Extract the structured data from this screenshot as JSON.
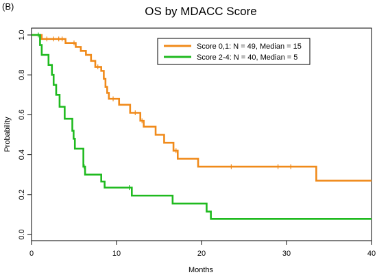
{
  "panel_label": "(B)",
  "chart_data": {
    "type": "line",
    "subtype": "kaplan-meier",
    "title": "OS by MDACC Score",
    "xlabel": "Months",
    "ylabel": "Probability",
    "xlim": [
      0,
      40
    ],
    "ylim": [
      0,
      1.0
    ],
    "xticks": [
      0,
      10,
      20,
      30,
      40
    ],
    "yticks": [
      0.0,
      0.2,
      0.4,
      0.6,
      0.8,
      1.0
    ],
    "grid": false,
    "legend_position": "top-right",
    "series": [
      {
        "name": "Score 0,1: N = 49, Median = 15",
        "color": "#f08a1a",
        "steps": [
          [
            0,
            1.0
          ],
          [
            1.2,
            0.98
          ],
          [
            4.0,
            0.96
          ],
          [
            5.2,
            0.94
          ],
          [
            5.8,
            0.92
          ],
          [
            6.4,
            0.9
          ],
          [
            7.0,
            0.87
          ],
          [
            7.5,
            0.84
          ],
          [
            8.2,
            0.82
          ],
          [
            8.5,
            0.78
          ],
          [
            8.7,
            0.74
          ],
          [
            8.9,
            0.71
          ],
          [
            9.1,
            0.68
          ],
          [
            10.3,
            0.65
          ],
          [
            11.6,
            0.61
          ],
          [
            12.8,
            0.57
          ],
          [
            13.2,
            0.54
          ],
          [
            14.6,
            0.5
          ],
          [
            15.6,
            0.46
          ],
          [
            16.7,
            0.42
          ],
          [
            17.2,
            0.38
          ],
          [
            19.6,
            0.34
          ],
          [
            33.5,
            0.27
          ],
          [
            40,
            0.27
          ]
        ],
        "censor_times": [
          1.8,
          2.6,
          3.2,
          3.6,
          5.0,
          7.8,
          9.6,
          12.2,
          13.0,
          17.0,
          23.5,
          29.0,
          30.5
        ]
      },
      {
        "name": "Score 2-4: N = 40, Median = 5",
        "color": "#1fba1f",
        "steps": [
          [
            0,
            1.0
          ],
          [
            1.0,
            0.95
          ],
          [
            1.2,
            0.9
          ],
          [
            2.0,
            0.85
          ],
          [
            2.4,
            0.8
          ],
          [
            2.6,
            0.75
          ],
          [
            2.9,
            0.7
          ],
          [
            3.3,
            0.64
          ],
          [
            3.9,
            0.58
          ],
          [
            4.8,
            0.52
          ],
          [
            4.95,
            0.48
          ],
          [
            5.1,
            0.43
          ],
          [
            6.1,
            0.34
          ],
          [
            6.3,
            0.3
          ],
          [
            8.2,
            0.265
          ],
          [
            8.6,
            0.235
          ],
          [
            11.8,
            0.195
          ],
          [
            16.6,
            0.155
          ],
          [
            20.6,
            0.115
          ],
          [
            21.1,
            0.078
          ],
          [
            40,
            0.078
          ]
        ],
        "censor_times": [
          0.8,
          6.2,
          11.5
        ]
      }
    ]
  }
}
